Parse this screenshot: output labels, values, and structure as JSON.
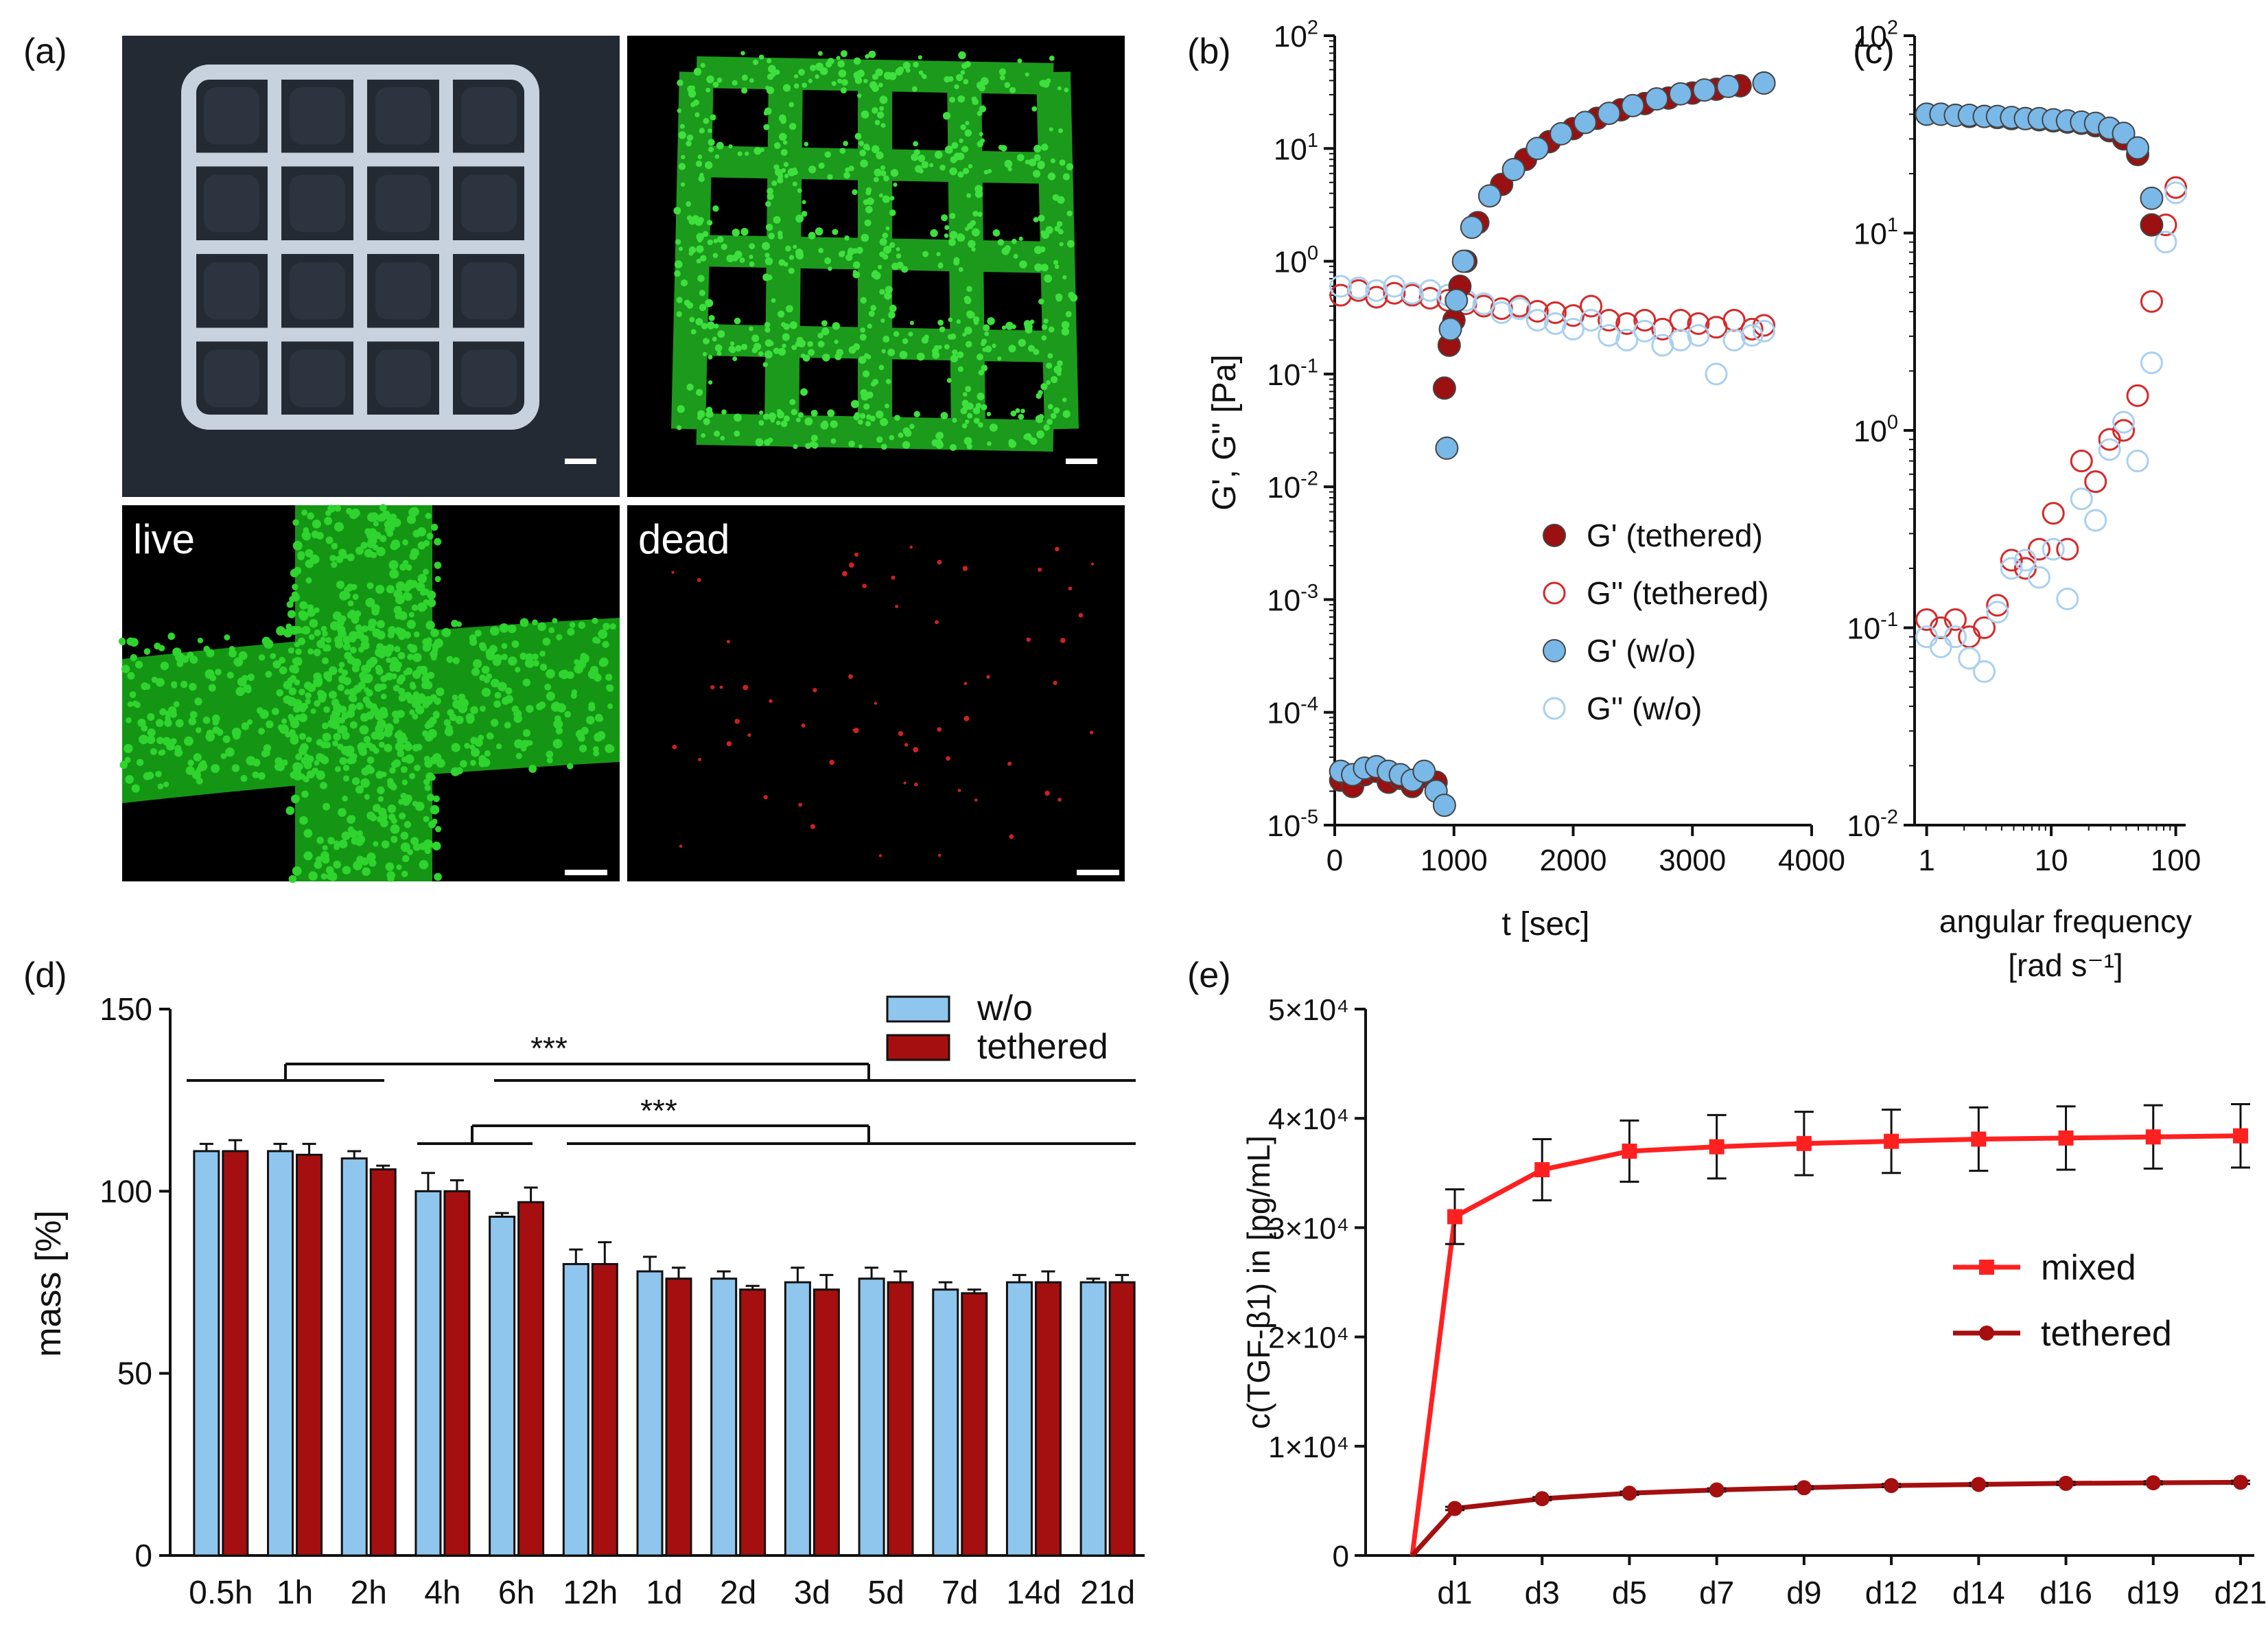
{
  "panel_labels": {
    "a": "(a)",
    "b": "(b)",
    "c": "(c)",
    "d": "(d)",
    "e": "(e)"
  },
  "micrographs": {
    "live_label": "live",
    "dead_label": "dead",
    "colors": {
      "live": "#22cc22",
      "dead": "#cc2222",
      "background": "#000000"
    }
  },
  "chart_data": [
    {
      "id": "b",
      "type": "scatter",
      "xlabel": "t [sec]",
      "ylabel": "G', G'' [Pa]",
      "xlim": [
        0,
        4000
      ],
      "ylim": [
        1e-05,
        100
      ],
      "yscale": "log",
      "xticks": [
        "0",
        "1000",
        "2000",
        "3000",
        "4000"
      ],
      "yticks": [
        "10^-5",
        "10^-4",
        "10^-3",
        "10^-2",
        "10^-1",
        "10^0",
        "10^1",
        "10^2"
      ],
      "legend_position": "center-right",
      "series": [
        {
          "name": "G' (tethered)",
          "marker": "filled",
          "color": "#9b1010",
          "x": [
            50,
            150,
            250,
            350,
            450,
            550,
            650,
            750,
            850,
            920,
            960,
            1000,
            1050,
            1100,
            1200,
            1400,
            1600,
            1800,
            2000,
            2200,
            2400,
            2600,
            2800,
            3000,
            3200,
            3400,
            3600
          ],
          "y": [
            2.5e-05,
            2.2e-05,
            2.8e-05,
            3e-05,
            2.4e-05,
            2.6e-05,
            2.2e-05,
            2.7e-05,
            2.4e-05,
            0.075,
            0.18,
            0.3,
            0.6,
            1.0,
            2.2,
            4.8,
            8.0,
            11.5,
            15.0,
            18.5,
            22.0,
            25.0,
            28.0,
            31.0,
            33.5,
            36.0,
            38.0
          ]
        },
        {
          "name": "G'' (tethered)",
          "marker": "open",
          "color": "#d42a2a",
          "x": [
            50,
            200,
            350,
            500,
            650,
            800,
            950,
            1100,
            1250,
            1400,
            1550,
            1700,
            1850,
            2000,
            2150,
            2300,
            2450,
            2600,
            2750,
            2900,
            3050,
            3200,
            3350,
            3500,
            3600
          ],
          "y": [
            0.5,
            0.55,
            0.48,
            0.52,
            0.5,
            0.47,
            0.45,
            0.42,
            0.4,
            0.38,
            0.4,
            0.36,
            0.35,
            0.33,
            0.4,
            0.3,
            0.28,
            0.3,
            0.25,
            0.3,
            0.28,
            0.26,
            0.3,
            0.25,
            0.27
          ]
        },
        {
          "name": "G' (w/o)",
          "marker": "filled",
          "color": "#7ab8e8",
          "x": [
            50,
            150,
            250,
            350,
            450,
            550,
            650,
            750,
            850,
            920,
            940,
            970,
            1020,
            1080,
            1150,
            1300,
            1500,
            1700,
            1900,
            2100,
            2300,
            2500,
            2700,
            2900,
            3100,
            3300,
            3600
          ],
          "y": [
            3e-05,
            2.8e-05,
            3.2e-05,
            3.3e-05,
            3e-05,
            2.8e-05,
            2.5e-05,
            3e-05,
            2e-05,
            1.5e-05,
            0.022,
            0.25,
            0.45,
            1.0,
            2.0,
            3.8,
            6.5,
            10.0,
            13.5,
            17.0,
            20.5,
            24.0,
            27.5,
            30.5,
            33.0,
            35.5,
            38.0
          ]
        },
        {
          "name": "G'' (w/o)",
          "marker": "open",
          "color": "#a8d0f0",
          "x": [
            50,
            200,
            350,
            500,
            650,
            800,
            950,
            1100,
            1250,
            1400,
            1550,
            1700,
            1850,
            2000,
            2150,
            2300,
            2450,
            2600,
            2750,
            2900,
            3050,
            3200,
            3350,
            3500,
            3600
          ],
          "y": [
            0.6,
            0.58,
            0.55,
            0.6,
            0.52,
            0.55,
            0.5,
            0.45,
            0.42,
            0.35,
            0.38,
            0.3,
            0.28,
            0.25,
            0.3,
            0.22,
            0.2,
            0.24,
            0.18,
            0.2,
            0.22,
            0.1,
            0.2,
            0.22,
            0.24
          ]
        }
      ]
    },
    {
      "id": "c",
      "type": "scatter",
      "xlabel": "angular frequency [rad s⁻¹]",
      "ylabel": "",
      "xscale": "log",
      "yscale": "log",
      "xlim": [
        0.8,
        120
      ],
      "ylim": [
        0.01,
        100
      ],
      "xticks": [
        "1",
        "10",
        "100"
      ],
      "yticks": [
        "10^-2",
        "10^-1",
        "10^0",
        "10^1",
        "10^2"
      ],
      "series": [
        {
          "name": "G' (tethered)",
          "marker": "filled",
          "color": "#9b1010",
          "x": [
            1,
            1.3,
            1.7,
            2.2,
            2.9,
            3.7,
            4.8,
            6.2,
            8,
            10.4,
            13.5,
            17.5,
            22.7,
            29.4,
            38.1,
            49.4,
            64
          ],
          "y": [
            40,
            40,
            39.5,
            39,
            39,
            38.5,
            38,
            38,
            37.5,
            37,
            36.5,
            36,
            35,
            33,
            30,
            25,
            11
          ]
        },
        {
          "name": "G'' (tethered)",
          "marker": "open",
          "color": "#d42a2a",
          "x": [
            1,
            1.3,
            1.7,
            2.2,
            2.9,
            3.7,
            4.8,
            6.2,
            8,
            10.4,
            13.5,
            17.5,
            22.7,
            29.4,
            38.1,
            49.4,
            64,
            83,
            100
          ],
          "y": [
            0.11,
            0.1,
            0.11,
            0.09,
            0.1,
            0.13,
            0.22,
            0.2,
            0.25,
            0.38,
            0.25,
            0.7,
            0.55,
            0.9,
            1.0,
            1.5,
            4.5,
            11,
            17
          ]
        },
        {
          "name": "G' (w/o)",
          "marker": "filled",
          "color": "#7ab8e8",
          "x": [
            1,
            1.3,
            1.7,
            2.2,
            2.9,
            3.7,
            4.8,
            6.2,
            8,
            10.4,
            13.5,
            17.5,
            22.7,
            29.4,
            38.1,
            49.4,
            64
          ],
          "y": [
            40,
            40,
            39.5,
            39.5,
            39,
            39,
            38.5,
            38,
            38,
            37.5,
            37,
            36.5,
            36,
            34,
            32,
            27,
            15
          ]
        },
        {
          "name": "G'' (w/o)",
          "marker": "open",
          "color": "#a8d0f0",
          "x": [
            1,
            1.3,
            1.7,
            2.2,
            2.9,
            3.7,
            4.8,
            6.2,
            8,
            10.4,
            13.5,
            17.5,
            22.7,
            29.4,
            38.1,
            49.4,
            64,
            83,
            100
          ],
          "y": [
            0.09,
            0.08,
            0.09,
            0.07,
            0.06,
            0.12,
            0.2,
            0.22,
            0.18,
            0.25,
            0.14,
            0.45,
            0.35,
            0.8,
            1.1,
            0.7,
            2.2,
            9,
            16
          ]
        }
      ]
    },
    {
      "id": "d",
      "type": "bar",
      "ylabel": "mass [%]",
      "xlabel": "",
      "ylim": [
        0,
        150
      ],
      "yticks": [
        "0",
        "50",
        "100",
        "150"
      ],
      "categories": [
        "0.5h",
        "1h",
        "2h",
        "4h",
        "6h",
        "12h",
        "1d",
        "2d",
        "3d",
        "5d",
        "7d",
        "14d",
        "21d"
      ],
      "legend_position": "top-right",
      "series": [
        {
          "name": "w/o",
          "color": "#8ec6ee",
          "values": [
            111,
            111,
            109,
            100,
            93,
            80,
            78,
            76,
            75,
            76,
            73,
            75,
            75
          ],
          "errors": [
            2,
            2,
            2,
            5,
            1,
            4,
            4,
            2,
            4,
            3,
            2,
            2,
            1
          ]
        },
        {
          "name": "tethered",
          "color": "#a50f0f",
          "values": [
            111,
            110,
            106,
            100,
            97,
            80,
            76,
            73,
            73,
            75,
            72,
            75,
            75
          ],
          "errors": [
            3,
            3,
            1,
            3,
            4,
            6,
            3,
            1,
            4,
            3,
            1,
            3,
            2
          ]
        }
      ],
      "annotations": [
        "***",
        "***"
      ]
    },
    {
      "id": "e",
      "type": "line",
      "ylabel": "c(TGF-β1) in [pg/mL]",
      "xlabel": "",
      "ylim": [
        0,
        50000
      ],
      "yticks": [
        "0",
        "1×10⁴",
        "2×10⁴",
        "3×10⁴",
        "4×10⁴",
        "5×10⁴"
      ],
      "categories": [
        "d1",
        "d3",
        "d5",
        "d7",
        "d9",
        "d12",
        "d14",
        "d16",
        "d19",
        "d21"
      ],
      "legend_position": "center-right",
      "series": [
        {
          "name": "mixed",
          "marker": "square",
          "color": "#ff2020",
          "values": [
            31000,
            35300,
            37000,
            37400,
            37700,
            37900,
            38100,
            38200,
            38300,
            38400
          ],
          "errors": [
            2500,
            2800,
            2800,
            2900,
            2900,
            2900,
            2900,
            2900,
            2900,
            2900
          ],
          "start_value": 0
        },
        {
          "name": "tethered",
          "marker": "circle",
          "color": "#a50f0f",
          "values": [
            4300,
            5200,
            5700,
            6000,
            6200,
            6400,
            6500,
            6600,
            6650,
            6700
          ],
          "errors": [
            150,
            150,
            150,
            150,
            150,
            150,
            150,
            150,
            150,
            150
          ],
          "start_value": 0
        }
      ]
    }
  ]
}
